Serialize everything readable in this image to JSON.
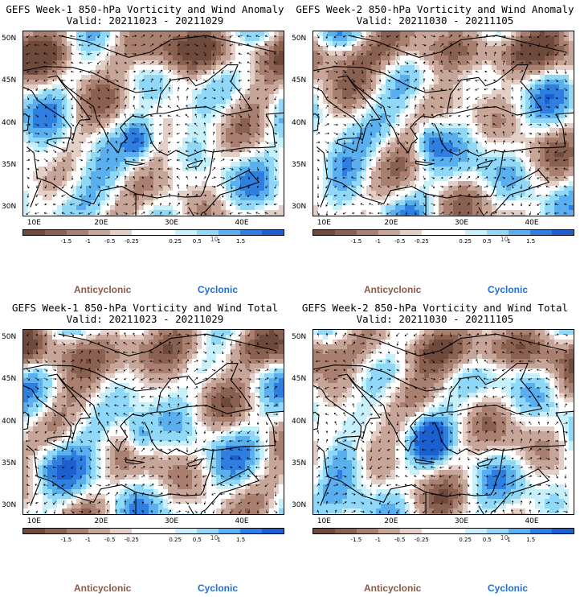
{
  "panels": [
    {
      "title": "GEFS Week-1 850-hPa Vorticity and Wind Anomaly",
      "valid": "Valid: 20211023 - 20211029",
      "field": "anomaly",
      "seed": 11
    },
    {
      "title": "GEFS Week-2 850-hPa Vorticity and Wind Anomaly",
      "valid": "Valid: 20211030 - 20211105",
      "field": "anomaly",
      "seed": 23
    },
    {
      "title": "GEFS Week-1 850-hPa Vorticity and Wind Total",
      "valid": "Valid: 20211023 - 20211029",
      "field": "total",
      "seed": 37
    },
    {
      "title": "GEFS Week-2 850-hPa Vorticity and Wind Total",
      "valid": "Valid: 20211030 - 20211105",
      "field": "total",
      "seed": 53
    }
  ],
  "chart_data": {
    "type": "heatmap",
    "variable": "850-hPa Vorticity and Wind",
    "lat_labels": [
      "50N",
      "45N",
      "40N",
      "35N",
      "30N"
    ],
    "lat_values": [
      50,
      45,
      40,
      35,
      30
    ],
    "lon_labels": [
      "10E",
      "20E",
      "30E",
      "40E"
    ],
    "lon_values": [
      10,
      20,
      30,
      40
    ],
    "lat_range": [
      29,
      51
    ],
    "lon_range": [
      9,
      46
    ],
    "colorbar": {
      "tick_labels": [
        "-1.5",
        "-1",
        "-0.5",
        "-0.25",
        "0.25",
        "0.5",
        "1",
        "1.5"
      ],
      "tick_values": [
        -1.5,
        -1,
        -0.5,
        -0.25,
        0.25,
        0.5,
        1,
        1.5
      ],
      "unit_label": "10",
      "colors": [
        "#6e4a3c",
        "#8a6050",
        "#a98070",
        "#c7a598",
        "#e3cfc6",
        "#ffffff",
        "#ffffff",
        "#c8f0fb",
        "#8fd8f8",
        "#5ab0ef",
        "#2e7fe0",
        "#1c5fd0"
      ]
    },
    "legend": {
      "anticyclonic_label": "Anticyclonic",
      "cyclonic_label": "Cyclonic",
      "anticyclonic_color": "#8a5a47",
      "cyclonic_color": "#1f6fd6"
    }
  }
}
